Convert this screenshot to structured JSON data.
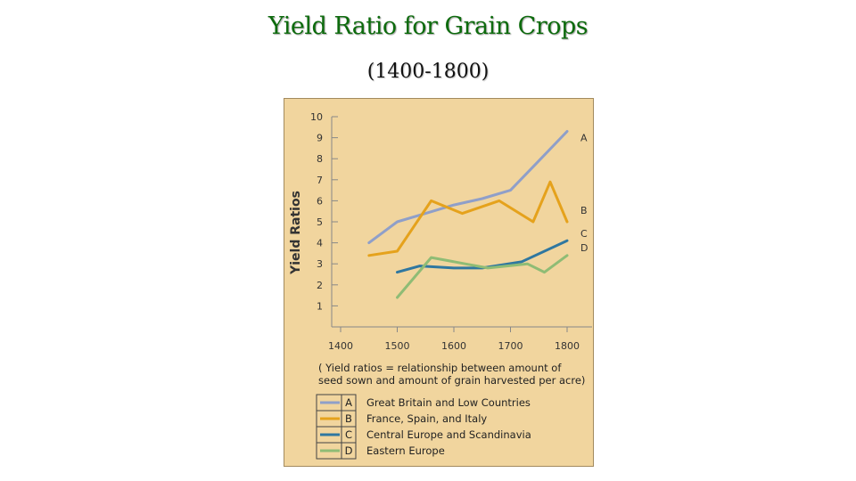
{
  "slide": {
    "title": "Yield Ratio for Grain Crops",
    "subtitle": "(1400-1800)"
  },
  "colors": {
    "panel_bg": "#f1d59e",
    "title": "#0d6b0d"
  },
  "chart_data": {
    "type": "line",
    "title": "",
    "xlabel": "",
    "ylabel": "Yield Ratios",
    "xlim": [
      1400,
      1800
    ],
    "ylim": [
      0,
      10
    ],
    "x_ticks": [
      1400,
      1500,
      1600,
      1700,
      1800
    ],
    "y_ticks": [
      1,
      2,
      3,
      4,
      5,
      6,
      7,
      8,
      9,
      10
    ],
    "grid": false,
    "note_lines": [
      "( Yield ratios = relationship between amount of",
      "seed sown and amount of grain harvested per acre)"
    ],
    "series": [
      {
        "key": "A",
        "name": "Great Britain and Low Countries",
        "color": "#8f9fc9",
        "points": [
          [
            1450,
            4.0
          ],
          [
            1500,
            5.0
          ],
          [
            1550,
            5.4
          ],
          [
            1600,
            5.8
          ],
          [
            1650,
            6.1
          ],
          [
            1700,
            6.5
          ],
          [
            1750,
            7.9
          ],
          [
            1800,
            9.3
          ]
        ]
      },
      {
        "key": "B",
        "name": "France, Spain, and Italy",
        "color": "#e5a21c",
        "points": [
          [
            1450,
            3.4
          ],
          [
            1500,
            3.6
          ],
          [
            1560,
            6.0
          ],
          [
            1615,
            5.4
          ],
          [
            1680,
            6.0
          ],
          [
            1740,
            5.0
          ],
          [
            1770,
            6.9
          ],
          [
            1800,
            5.0
          ]
        ]
      },
      {
        "key": "C",
        "name": "Central Europe and Scandinavia",
        "color": "#2f77a0",
        "points": [
          [
            1500,
            2.6
          ],
          [
            1540,
            2.9
          ],
          [
            1600,
            2.8
          ],
          [
            1650,
            2.8
          ],
          [
            1720,
            3.1
          ],
          [
            1800,
            4.1
          ]
        ]
      },
      {
        "key": "D",
        "name": "Eastern Europe",
        "color": "#8fbc75",
        "points": [
          [
            1500,
            1.4
          ],
          [
            1560,
            3.3
          ],
          [
            1620,
            3.0
          ],
          [
            1660,
            2.8
          ],
          [
            1730,
            3.0
          ],
          [
            1760,
            2.6
          ],
          [
            1800,
            3.4
          ]
        ]
      }
    ]
  }
}
